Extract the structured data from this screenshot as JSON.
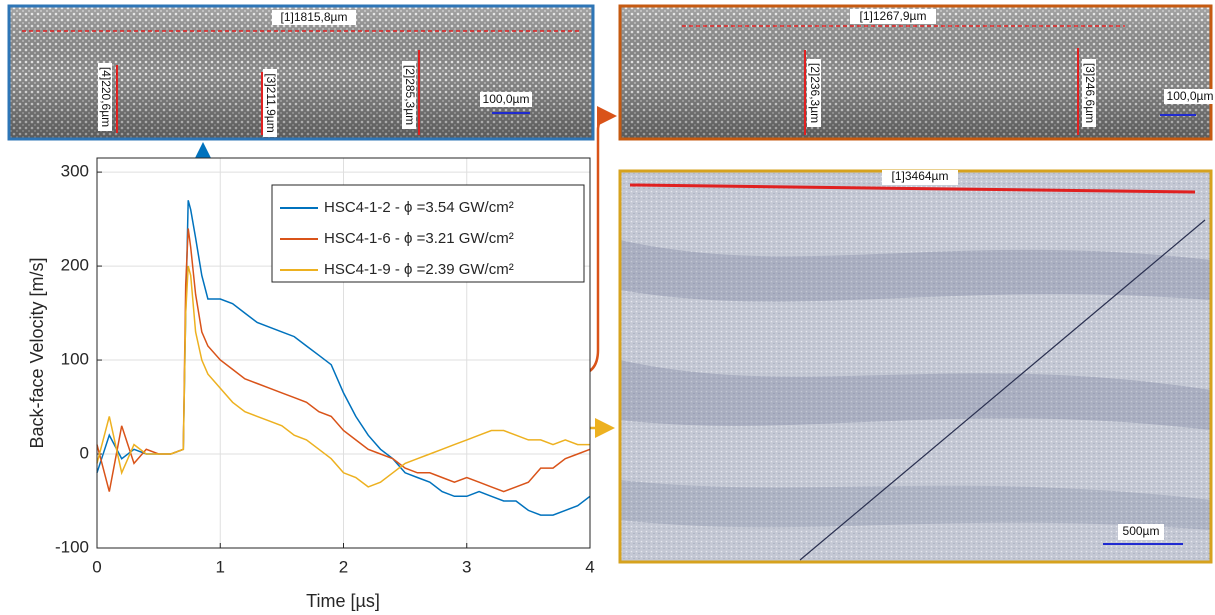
{
  "chart_data": {
    "type": "line",
    "x_label": "Time [µs]",
    "y_label": "Back-face Velocity [m/s]",
    "x": [
      0,
      0.1,
      0.2,
      0.3,
      0.4,
      0.5,
      0.6,
      0.7,
      0.72,
      0.74,
      0.76,
      0.8,
      0.85,
      0.9,
      1.0,
      1.1,
      1.2,
      1.3,
      1.4,
      1.5,
      1.6,
      1.7,
      1.8,
      1.9,
      2.0,
      2.1,
      2.2,
      2.3,
      2.4,
      2.5,
      2.6,
      2.7,
      2.8,
      2.9,
      3.0,
      3.1,
      3.2,
      3.3,
      3.4,
      3.5,
      3.6,
      3.7,
      3.8,
      3.9,
      4.0
    ],
    "series": [
      {
        "name": "HSC4-1-2 - ϕ =3.54 GW/cm²",
        "color": "#0072bd",
        "values": [
          -20,
          20,
          -5,
          5,
          0,
          0,
          0,
          5,
          150,
          270,
          260,
          230,
          190,
          165,
          165,
          160,
          150,
          140,
          135,
          130,
          125,
          115,
          105,
          95,
          65,
          40,
          20,
          5,
          -5,
          -20,
          -25,
          -30,
          -40,
          -45,
          -45,
          -40,
          -45,
          -50,
          -50,
          -60,
          -65,
          -65,
          -60,
          -55,
          -45
        ]
      },
      {
        "name": "HSC4-1-6 - ϕ =3.21 GW/cm²",
        "color": "#d95319",
        "values": [
          10,
          -40,
          30,
          -10,
          5,
          0,
          0,
          5,
          180,
          240,
          220,
          170,
          130,
          115,
          100,
          90,
          80,
          75,
          70,
          65,
          60,
          55,
          45,
          40,
          25,
          15,
          5,
          0,
          -5,
          -15,
          -20,
          -20,
          -25,
          -30,
          -25,
          -30,
          -35,
          -40,
          -35,
          -30,
          -15,
          -15,
          -5,
          0,
          5
        ]
      },
      {
        "name": "HSC4-1-9 - ϕ =2.39 GW/cm²",
        "color": "#edb120",
        "values": [
          -10,
          40,
          -20,
          10,
          0,
          0,
          0,
          5,
          150,
          200,
          190,
          130,
          100,
          85,
          70,
          55,
          45,
          40,
          35,
          30,
          20,
          15,
          5,
          -5,
          -20,
          -25,
          -35,
          -30,
          -20,
          -10,
          -5,
          0,
          5,
          10,
          15,
          20,
          25,
          25,
          20,
          15,
          15,
          10,
          15,
          10,
          10
        ]
      }
    ],
    "xlim": [
      0,
      4
    ],
    "xticks": [
      0,
      1,
      2,
      3,
      4
    ],
    "ylim": [
      -100,
      315
    ],
    "yticks": [
      -100,
      0,
      100,
      200,
      300
    ],
    "grid": true,
    "legend": "upper right"
  },
  "images": [
    {
      "labels": [
        "[1]1815,8µm",
        "[4]220,6µm",
        "[3]211,9µm",
        "[2]285,3µm",
        "100,0µm"
      ]
    },
    {
      "labels": [
        "[1]1267,9µm",
        "[2]236,3µm",
        "[3]246,6µm",
        "100,0µm"
      ]
    },
    {
      "labels": [
        "[1]3464µm",
        "500µm"
      ]
    }
  ]
}
